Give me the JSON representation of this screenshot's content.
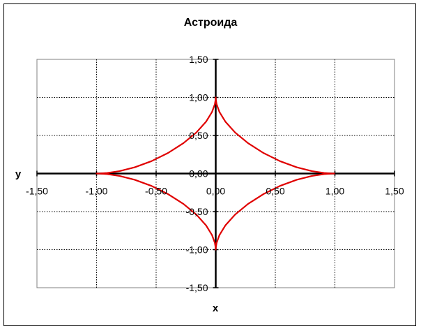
{
  "chart_data": {
    "type": "line",
    "title": "Астроида",
    "xlabel": "x",
    "ylabel": "y",
    "xlim": [
      -1.5,
      1.5
    ],
    "ylim": [
      -1.5,
      1.5
    ],
    "x_ticks": [
      -1.5,
      -1.0,
      -0.5,
      0.0,
      0.5,
      1.0,
      1.5
    ],
    "y_ticks": [
      -1.5,
      -1.0,
      -0.5,
      0.0,
      0.5,
      1.0,
      1.5
    ],
    "x_tick_labels": [
      "-1,50",
      "-1,00",
      "-0,50",
      "0,00",
      "0,50",
      "1,00",
      "1,50"
    ],
    "y_tick_labels": [
      "-1,50",
      "-1,00",
      "-0,50",
      "0,00",
      "0,50",
      "1,00",
      "1,50"
    ],
    "grid": true,
    "series": [
      {
        "color": "#e00000",
        "x": [
          1.0,
          0.9769,
          0.9106,
          0.8077,
          0.6797,
          0.5396,
          0.3995,
          0.2707,
          0.1623,
          0.0818,
          0.0314,
          0.0074,
          0.0005,
          0.0,
          -0.0005,
          -0.0074,
          -0.0314,
          -0.0818,
          -0.1623,
          -0.2707,
          -0.3995,
          -0.5396,
          -0.6797,
          -0.8077,
          -0.9106,
          -0.9769,
          -1.0,
          -0.9769,
          -0.9106,
          -0.8077,
          -0.6797,
          -0.5396,
          -0.3995,
          -0.2707,
          -0.1623,
          -0.0818,
          -0.0314,
          -0.0074,
          -0.0005,
          0.0,
          0.0005,
          0.0074,
          0.0314,
          0.0818,
          0.1623,
          0.2707,
          0.3995,
          0.5396,
          0.6797,
          0.8077,
          0.9106,
          0.9769,
          1.0
        ],
        "y": [
          0.0,
          0.0005,
          0.0074,
          0.0314,
          0.0818,
          0.1623,
          0.2707,
          0.3995,
          0.5396,
          0.6797,
          0.8077,
          0.9106,
          0.9769,
          1.0,
          0.9769,
          0.9106,
          0.8077,
          0.6797,
          0.5396,
          0.3995,
          0.2707,
          0.1623,
          0.0818,
          0.0314,
          0.0074,
          0.0005,
          0.0,
          -0.0005,
          -0.0074,
          -0.0314,
          -0.0818,
          -0.1623,
          -0.2707,
          -0.3995,
          -0.5396,
          -0.6797,
          -0.8077,
          -0.9106,
          -0.9769,
          -1.0,
          -0.9769,
          -0.9106,
          -0.8077,
          -0.6797,
          -0.5396,
          -0.3995,
          -0.2707,
          -0.1623,
          -0.0818,
          -0.0314,
          -0.0074,
          -0.0005,
          0.0
        ]
      }
    ]
  }
}
